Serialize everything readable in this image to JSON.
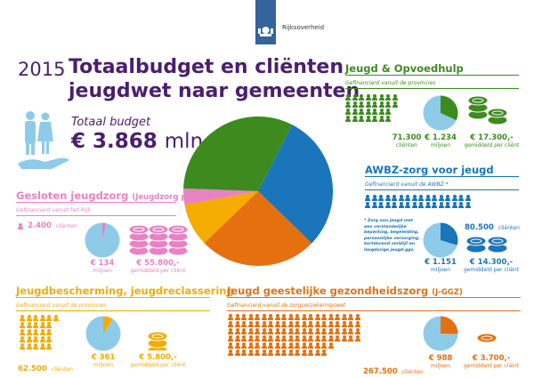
{
  "logo": {
    "text": "Rijksoverheid",
    "color": "#34649b"
  },
  "header": {
    "year": "2015",
    "title_line1": "Totaalbudget en cliënten",
    "title_line2": "jeugdwet naar gemeenten",
    "color": "#4b1e6e"
  },
  "total": {
    "label": "Totaal budget",
    "value": "€ 3.868",
    "unit": "mln."
  },
  "pie_colors": {
    "rest": "#8ecbe9"
  },
  "chart_data": {
    "type": "pie",
    "values": [
      1151,
      988,
      361,
      134,
      1234
    ],
    "categories": [
      "AWBZ-zorg voor jeugd",
      "Jeugd geestelijke gezondheidszorg (J-GGZ)",
      "Jeugdbescherming, jeugdreclassering",
      "Gesloten jeugdzorg (Jeugdzorg plus)",
      "Jeugd & Opvoedhulp"
    ],
    "colors": [
      "#1a75bb",
      "#e5700f",
      "#f5ab00",
      "#e882c4",
      "#3d8b1f"
    ],
    "unit": "miljoen €"
  },
  "sections": {
    "jeugd": {
      "title": "Jeugd & Opvoedhulp",
      "subtitle": "Gefinancierd vanuit de provincies",
      "clients": "71.300",
      "clients_label": "cliënten",
      "budget": "€ 1.234",
      "budget_label": "miljoen",
      "per_client": "€ 17.300,-",
      "per_client_label": "gemiddeld per cliënt",
      "color": "#3d8b1f",
      "share": 0.319,
      "icon_rows": [
        8,
        8,
        7,
        7
      ]
    },
    "awbz": {
      "title": "AWBZ-zorg voor jeugd",
      "subtitle": "Gefinancierd vanuit de AWBZ *",
      "clients": "80.500",
      "clients_label": "cliënten",
      "budget": "€ 1.151",
      "budget_label": "miljoen",
      "per_client": "€ 14.300,-",
      "per_client_label": "gemiddeld per cliënt",
      "footnote": "* Zorg aan jeugd met een verstandelijke beperking, begeleiding, persoonlijke verzorging, kortdurend verblijf en langdurige jeugd-ggz.",
      "color": "#1a75bb",
      "share": 0.298,
      "icon_rows": [
        16,
        16
      ]
    },
    "gesloten": {
      "title": "Gesloten jeugdzorg",
      "title_suffix": "(Jeugdzorg plus)",
      "subtitle": "Gefinancierd vanuit het Rijk",
      "clients": "2.400",
      "clients_label": "cliënten",
      "budget": "€ 134",
      "budget_label": "miljoen",
      "per_client": "€ 55.800,-",
      "per_client_label": "gemiddeld per cliënt",
      "color": "#e882c4",
      "share": 0.035,
      "icon_rows": [
        1
      ]
    },
    "jb": {
      "title": "Jeugdbescherming, jeugdreclassering",
      "subtitle": "Gefinancierd vanuit de provincies",
      "clients": "62.500",
      "clients_label": "cliënten",
      "budget": "€ 361",
      "budget_label": "miljoen",
      "per_client": "€ 5.800,-",
      "per_client_label": "gemiddeld per cliënt",
      "color": "#f5ab00",
      "share": 0.093,
      "icon_rows": [
        6,
        5,
        5,
        5,
        5
      ]
    },
    "jggz": {
      "title": "Jeugd geestelijke gezondheidszorg",
      "title_suffix": "(J-GGZ)",
      "subtitle": "Gefinancierd vanuit de zorgverzekeringswet",
      "clients": "267.500",
      "clients_label": "cliënten",
      "budget": "€ 988",
      "budget_label": "miljoen",
      "per_client": "€ 3.700,-",
      "per_client_label": "gemiddeld per cliënt",
      "color": "#e5700f",
      "share": 0.255,
      "icon_rows": [
        20,
        20,
        20,
        20,
        16,
        15
      ]
    }
  }
}
